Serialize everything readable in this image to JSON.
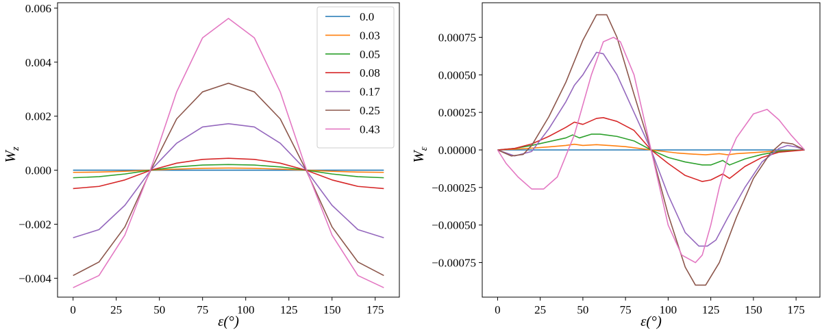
{
  "series_colors": [
    "#1f77b4",
    "#ff7f0e",
    "#2ca02c",
    "#d62728",
    "#9467bd",
    "#8c564b",
    "#e377c2"
  ],
  "legend": {
    "entries": [
      "0.0",
      "0.03",
      "0.05",
      "0.08",
      "0.17",
      "0.25",
      "0.43"
    ],
    "placement": "top-right of left panel"
  },
  "chart_data": [
    {
      "type": "line",
      "title": "",
      "xlabel": "ε(°)",
      "ylabel": "W_z",
      "xlim": [
        -9,
        189
      ],
      "ylim": [
        -0.0047,
        0.0062
      ],
      "xticks": [
        0,
        25,
        50,
        75,
        100,
        125,
        150,
        175
      ],
      "xtick_labels": [
        "0",
        "25",
        "50",
        "75",
        "100",
        "125",
        "150",
        "175"
      ],
      "yticks": [
        -0.004,
        -0.002,
        0.0,
        0.002,
        0.004,
        0.006
      ],
      "ytick_labels": [
        "−0.004",
        "−0.002",
        "0.000",
        "0.002",
        "0.004",
        "0.006"
      ],
      "x": [
        0,
        15,
        30,
        45,
        60,
        75,
        90,
        105,
        120,
        135,
        150,
        165,
        180
      ],
      "series": [
        {
          "name": "0.0",
          "values": [
            0.0,
            0.0,
            0.0,
            0.0,
            0.0,
            0.0,
            0.0,
            0.0,
            0.0,
            0.0,
            0.0,
            0.0,
            0.0
          ]
        },
        {
          "name": "0.03",
          "values": [
            -8e-05,
            -7e-05,
            -4e-05,
            0.0,
            4e-05,
            7e-05,
            8e-05,
            7e-05,
            4e-05,
            0.0,
            -4e-05,
            -7e-05,
            -8e-05
          ]
        },
        {
          "name": "0.05",
          "values": [
            -0.00028,
            -0.00024,
            -0.00014,
            0.0,
            0.00012,
            0.00019,
            0.00021,
            0.00019,
            0.00012,
            0.0,
            -0.00014,
            -0.00024,
            -0.00028
          ]
        },
        {
          "name": "0.08",
          "values": [
            -0.00068,
            -0.0006,
            -0.00036,
            0.0,
            0.00026,
            0.0004,
            0.00044,
            0.0004,
            0.00026,
            0.0,
            -0.00036,
            -0.0006,
            -0.00068
          ]
        },
        {
          "name": "0.17",
          "values": [
            -0.0025,
            -0.0022,
            -0.0013,
            0.0,
            0.001,
            0.0016,
            0.00172,
            0.0016,
            0.001,
            0.0,
            -0.0013,
            -0.0022,
            -0.0025
          ]
        },
        {
          "name": "0.25",
          "values": [
            -0.0039,
            -0.0034,
            -0.0021,
            0.0,
            0.0019,
            0.0029,
            0.00322,
            0.0029,
            0.0019,
            0.0,
            -0.0021,
            -0.0034,
            -0.0039
          ]
        },
        {
          "name": "0.43",
          "values": [
            -0.00435,
            -0.0039,
            -0.0024,
            5e-05,
            0.0029,
            0.0049,
            0.00562,
            0.0049,
            0.0029,
            5e-05,
            -0.0024,
            -0.0039,
            -0.00435
          ]
        }
      ]
    },
    {
      "type": "line",
      "title": "",
      "xlabel": "ε(°)",
      "ylabel": "W_ε",
      "xlim": [
        -9,
        189
      ],
      "ylim": [
        -0.00098,
        0.00098
      ],
      "xticks": [
        0,
        25,
        50,
        75,
        100,
        125,
        150,
        175
      ],
      "xtick_labels": [
        "0",
        "25",
        "50",
        "75",
        "100",
        "125",
        "150",
        "175"
      ],
      "yticks": [
        -0.00075,
        -0.0005,
        -0.00025,
        0.0,
        0.00025,
        0.0005,
        0.00075
      ],
      "ytick_labels": [
        "−0.00075",
        "−0.00050",
        "−0.00025",
        "0.00000",
        "0.00025",
        "0.00050",
        "0.00075"
      ],
      "series": [
        {
          "name": "0.0",
          "x": [
            0,
            180
          ],
          "values": [
            0.0,
            0.0
          ]
        },
        {
          "name": "0.03",
          "x": [
            0,
            10,
            20,
            30,
            40,
            45,
            50,
            58,
            65,
            75,
            90,
            105,
            115,
            122,
            130,
            135,
            140,
            150,
            160,
            170,
            180
          ],
          "values": [
            0.0,
            5e-06,
            1.2e-05,
            2e-05,
            3e-05,
            3.8e-05,
            3e-05,
            3.5e-05,
            3e-05,
            2.2e-05,
            0.0,
            -2e-05,
            -2.8e-05,
            -3.2e-05,
            -2.5e-05,
            -3.2e-05,
            -2.5e-05,
            -1.8e-05,
            -1e-05,
            -4e-06,
            0.0
          ]
        },
        {
          "name": "0.05",
          "x": [
            0,
            10,
            20,
            30,
            40,
            44,
            48,
            55,
            60,
            70,
            80,
            90,
            100,
            110,
            120,
            125,
            132,
            136,
            145,
            155,
            165,
            180
          ],
          "values": [
            0.0,
            1e-05,
            3e-05,
            5.5e-05,
            8e-05,
            0.0001,
            8e-05,
            0.000105,
            0.000105,
            9e-05,
            6e-05,
            0.0,
            -5e-05,
            -8e-05,
            -0.0001,
            -0.0001,
            -7e-05,
            -0.0001,
            -6e-05,
            -3e-05,
            -1e-05,
            0.0
          ]
        },
        {
          "name": "0.08",
          "x": [
            0,
            10,
            20,
            30,
            40,
            45,
            50,
            58,
            62,
            70,
            80,
            90,
            100,
            110,
            120,
            125,
            132,
            136,
            145,
            155,
            165,
            180
          ],
          "values": [
            0.0,
            1e-05,
            4e-05,
            9e-05,
            0.00015,
            0.000185,
            0.00017,
            0.00021,
            0.000215,
            0.00019,
            0.00013,
            0.0,
            -9e-05,
            -0.00017,
            -0.00021,
            -0.0002,
            -0.00016,
            -0.00019,
            -0.00011,
            -5e-05,
            -1.5e-05,
            0.0
          ]
        },
        {
          "name": "0.17",
          "x": [
            0,
            10,
            20,
            30,
            40,
            45,
            50,
            58,
            62,
            70,
            80,
            90,
            100,
            110,
            118,
            123,
            128,
            135,
            145,
            155,
            165,
            170,
            175,
            180
          ],
          "values": [
            0.0,
            -4e-05,
            -1e-05,
            0.00014,
            0.00032,
            0.00043,
            0.0005,
            0.00065,
            0.00064,
            0.0005,
            0.00025,
            0.0,
            -0.0003,
            -0.00055,
            -0.00064,
            -0.00064,
            -0.0006,
            -0.00045,
            -0.00025,
            -8e-05,
            1e-05,
            3e-05,
            2e-05,
            0.0
          ]
        },
        {
          "name": "0.25",
          "x": [
            0,
            8,
            15,
            20,
            30,
            40,
            50,
            58,
            64,
            70,
            80,
            90,
            100,
            110,
            116,
            122,
            130,
            140,
            150,
            160,
            167,
            173,
            180
          ],
          "values": [
            0.0,
            -4e-05,
            -3e-05,
            3e-05,
            0.00022,
            0.00045,
            0.00073,
            0.0009,
            0.0009,
            0.00075,
            0.00037,
            0.0,
            -0.00043,
            -0.00078,
            -0.0009,
            -0.0009,
            -0.00075,
            -0.00045,
            -0.00019,
            -2e-05,
            5e-05,
            4e-05,
            0.0
          ]
        },
        {
          "name": "0.43",
          "x": [
            0,
            5,
            12,
            20,
            27,
            35,
            45,
            55,
            62,
            68,
            72,
            80,
            90,
            100,
            108,
            116,
            120,
            125,
            130,
            135,
            140,
            150,
            158,
            165,
            172,
            180
          ],
          "values": [
            0.0,
            -9e-05,
            -0.00018,
            -0.00026,
            -0.00026,
            -0.00018,
            0.0001,
            0.0005,
            0.00072,
            0.00075,
            0.00072,
            0.0005,
            0.0,
            -0.0005,
            -0.0007,
            -0.00075,
            -0.0007,
            -0.0005,
            -0.00025,
            -5e-05,
            8e-05,
            0.00024,
            0.00027,
            0.0002,
            0.0001,
            0.0
          ]
        }
      ]
    }
  ]
}
